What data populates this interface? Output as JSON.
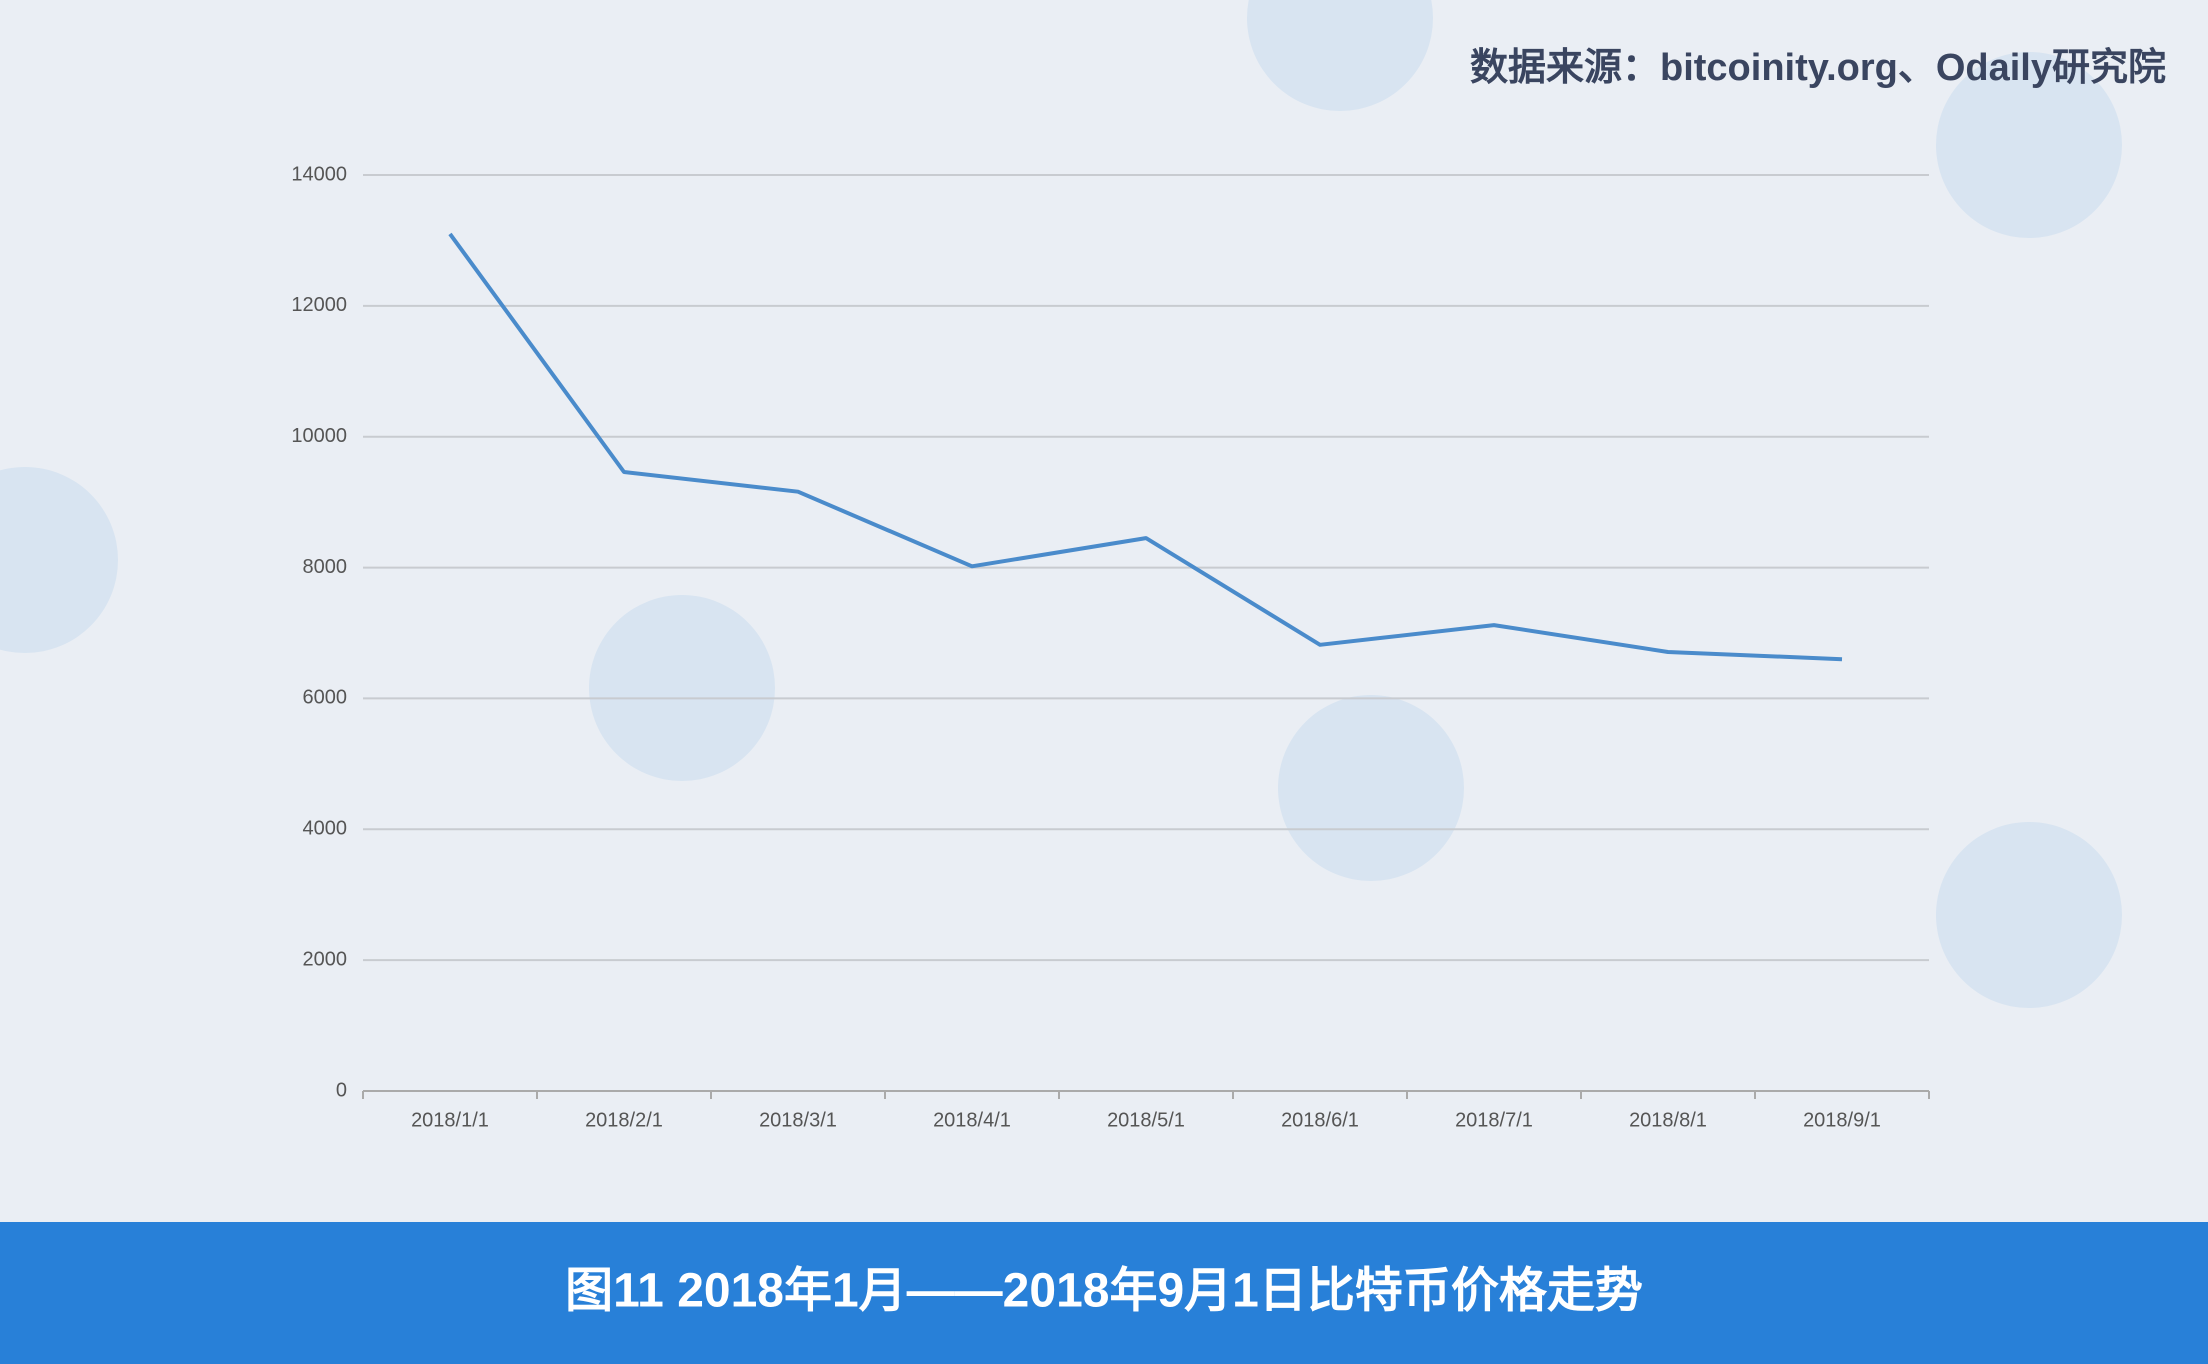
{
  "chart_data": {
    "type": "line",
    "source": "数据来源：bitcoinity.org、Odaily研究院",
    "caption": "图11  2018年1月——2018年9月1日比特币价格走势",
    "categories": [
      "2018/1/1",
      "2018/2/1",
      "2018/3/1",
      "2018/4/1",
      "2018/5/1",
      "2018/6/1",
      "2018/7/1",
      "2018/8/1",
      "2018/9/1"
    ],
    "values": [
      13100,
      9460,
      9160,
      8020,
      8450,
      6820,
      7120,
      6710,
      6600
    ],
    "color": "#4a8bcb",
    "ylim": [
      0,
      14000
    ],
    "yticks": [
      0,
      2000,
      4000,
      6000,
      8000,
      10000,
      12000,
      14000
    ],
    "grid": true
  }
}
